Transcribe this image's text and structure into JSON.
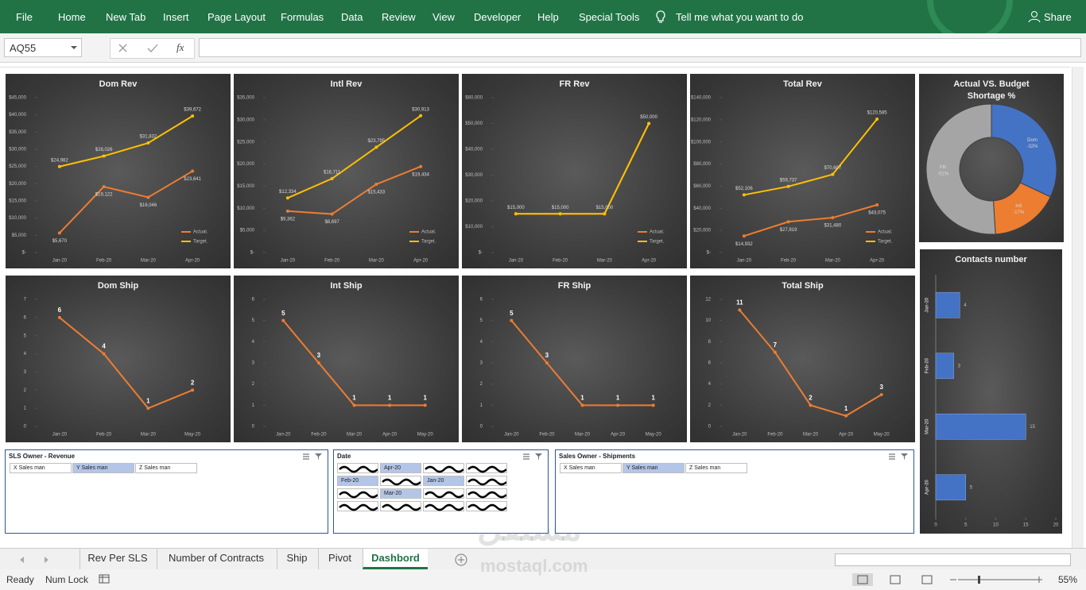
{
  "ribbon": {
    "tabs": [
      "File",
      "Home",
      "New Tab",
      "Insert",
      "Page Layout",
      "Formulas",
      "Data",
      "Review",
      "View",
      "Developer",
      "Help",
      "Special Tools"
    ],
    "tell_me": "Tell me what you want to do",
    "share": "Share"
  },
  "formula_bar": {
    "name_box": "AQ55",
    "fx": "fx"
  },
  "chart_data": [
    {
      "type": "line",
      "title": "Dom Rev",
      "categories": [
        "Jan-20",
        "Feb-20",
        "Mar-20",
        "Apr-20"
      ],
      "series": [
        {
          "name": "Actual.",
          "color": "#ed7d31",
          "values": [
            5670,
            19122,
            16046,
            23641
          ],
          "value_labels": [
            "$5,670",
            "$19,122",
            "$16,046",
            "$23,641"
          ]
        },
        {
          "name": "Target.",
          "color": "#ffc000",
          "values": [
            24982,
            28026,
            31832,
            39672
          ],
          "value_labels": [
            "$24,982",
            "$28,026",
            "$31,832",
            "$39,672"
          ]
        }
      ],
      "ylim": [
        0,
        45000
      ],
      "yticks": [
        {
          "value": 0,
          "label": "$-"
        },
        {
          "value": 5000,
          "label": "$5,000"
        },
        {
          "value": 10000,
          "label": "$10,000"
        },
        {
          "value": 15000,
          "label": "$15,000"
        },
        {
          "value": 20000,
          "label": "$20,000"
        },
        {
          "value": 25000,
          "label": "$25,000"
        },
        {
          "value": 30000,
          "label": "$30,000"
        },
        {
          "value": 35000,
          "label": "$35,000"
        },
        {
          "value": 40000,
          "label": "$40,000"
        },
        {
          "value": 45000,
          "label": "$45,000"
        }
      ],
      "legend": "lower right"
    },
    {
      "type": "line",
      "title": "Intl Rev",
      "categories": [
        "Jan-20",
        "Feb-20",
        "Mar-20",
        "Apr-20"
      ],
      "series": [
        {
          "name": "Actual.",
          "color": "#ed7d31",
          "values": [
            9362,
            8697,
            15433,
            19434
          ],
          "value_labels": [
            "$9,362",
            "$8,697",
            "$15,433",
            "$19,434"
          ]
        },
        {
          "name": "Target.",
          "color": "#ffc000",
          "values": [
            12334,
            16711,
            23795,
            30913
          ],
          "value_labels": [
            "$12,334",
            "$16,711",
            "$23,795",
            "$30,913"
          ]
        }
      ],
      "ylim": [
        0,
        35000
      ],
      "yticks": [
        {
          "value": 0,
          "label": "$-"
        },
        {
          "value": 5000,
          "label": "$5,000"
        },
        {
          "value": 10000,
          "label": "$10,000"
        },
        {
          "value": 15000,
          "label": "$15,000"
        },
        {
          "value": 20000,
          "label": "$20,000"
        },
        {
          "value": 25000,
          "label": "$25,000"
        },
        {
          "value": 30000,
          "label": "$30,000"
        },
        {
          "value": 35000,
          "label": "$35,000"
        }
      ],
      "legend": "lower right"
    },
    {
      "type": "line",
      "title": "FR Rev",
      "categories": [
        "Jan-20",
        "Feb-20",
        "Mar-20",
        "Apr-20"
      ],
      "series": [
        {
          "name": "Actual.",
          "color": "#ed7d31",
          "values": [
            15000,
            15000,
            15000,
            50000
          ]
        },
        {
          "name": "Target.",
          "color": "#ffc000",
          "values": [
            15000,
            15000,
            15000,
            50000
          ],
          "value_labels": [
            "$15,000",
            "$15,000",
            "$15,000",
            "$50,000"
          ]
        }
      ],
      "ylim": [
        0,
        60000
      ],
      "yticks": [
        {
          "value": 0,
          "label": "$-"
        },
        {
          "value": 10000,
          "label": "$10,000"
        },
        {
          "value": 20000,
          "label": "$20,000"
        },
        {
          "value": 30000,
          "label": "$30,000"
        },
        {
          "value": 40000,
          "label": "$40,000"
        },
        {
          "value": 50000,
          "label": "$50,000"
        },
        {
          "value": 60000,
          "label": "$60,000"
        }
      ],
      "legend": "lower right"
    },
    {
      "type": "line",
      "title": "Total Rev",
      "categories": [
        "Jan-20",
        "Feb-20",
        "Mar-20",
        "Apr-20"
      ],
      "series": [
        {
          "name": "Actual.",
          "color": "#ed7d31",
          "values": [
            14932,
            27819,
            31480,
            43075
          ],
          "value_labels": [
            "$14,932",
            "$27,819",
            "$31,480",
            "$43,075"
          ]
        },
        {
          "name": "Target.",
          "color": "#ffc000",
          "values": [
            52106,
            59737,
            70607,
            120585
          ],
          "value_labels": [
            "$52,106",
            "$59,737",
            "$70,607",
            "$120,585"
          ]
        }
      ],
      "ylim": [
        0,
        140000
      ],
      "yticks": [
        {
          "value": 0,
          "label": "$-"
        },
        {
          "value": 20000,
          "label": "$20,000"
        },
        {
          "value": 40000,
          "label": "$40,000"
        },
        {
          "value": 60000,
          "label": "$60,000"
        },
        {
          "value": 80000,
          "label": "$80,000"
        },
        {
          "value": 100000,
          "label": "$100,000"
        },
        {
          "value": 120000,
          "label": "$120,000"
        },
        {
          "value": 140000,
          "label": "$140,000"
        }
      ],
      "legend": "lower right"
    },
    {
      "type": "line",
      "title": "Dom Ship",
      "categories": [
        "Jan-20",
        "Feb-20",
        "Mar-20",
        "May-20"
      ],
      "values": [
        6,
        4,
        1,
        2
      ],
      "color": "#ed7d31",
      "data_labels": true,
      "ylim": [
        0,
        7
      ],
      "yticks": [
        0,
        1,
        2,
        3,
        4,
        5,
        6,
        7
      ]
    },
    {
      "type": "line",
      "title": "Int Ship",
      "categories": [
        "Jan-20",
        "Feb-20",
        "Mar-20",
        "Apr-20",
        "May-20"
      ],
      "values": [
        5,
        3,
        1,
        1,
        1
      ],
      "color": "#ed7d31",
      "data_labels": true,
      "ylim": [
        0,
        6
      ],
      "yticks": [
        0,
        1,
        2,
        3,
        4,
        5,
        6
      ]
    },
    {
      "type": "line",
      "title": "FR Ship",
      "categories": [
        "Jan-20",
        "Feb-20",
        "Mar-20",
        "Apr-20",
        "May-20"
      ],
      "values": [
        5,
        3,
        1,
        1,
        1
      ],
      "color": "#ed7d31",
      "data_labels": true,
      "ylim": [
        0,
        6
      ],
      "yticks": [
        0,
        1,
        2,
        3,
        4,
        5,
        6
      ]
    },
    {
      "type": "line",
      "title": "Total Ship",
      "categories": [
        "Jan-20",
        "Feb-20",
        "Mar-20",
        "Apr-20",
        "May-20"
      ],
      "values": [
        11,
        7,
        2,
        1,
        3
      ],
      "color": "#ed7d31",
      "data_labels": true,
      "ylim": [
        0,
        12
      ],
      "yticks": [
        0,
        2,
        4,
        6,
        8,
        10,
        12
      ]
    },
    {
      "type": "pie",
      "donut": true,
      "title": "Actual VS. Budget Shortage %",
      "categories": [
        "Dom",
        "Intl",
        "FR"
      ],
      "values": [
        -32,
        -17,
        -51
      ],
      "value_labels": [
        "-32%",
        "-17%",
        "-51%"
      ],
      "colors": [
        "#4472c4",
        "#ed7d31",
        "#a5a5a5"
      ]
    },
    {
      "type": "bar",
      "orientation": "horizontal",
      "title": "Contacts number",
      "categories": [
        "Jan-20",
        "Feb-20",
        "Mar-20",
        "Apr-20"
      ],
      "values": [
        4,
        3,
        15,
        5
      ],
      "color": "#4472c4",
      "data_labels": true,
      "xlim": [
        0,
        20
      ],
      "xticks": [
        0,
        5,
        10,
        15,
        20
      ]
    }
  ],
  "slicers": [
    {
      "title": "SLS Owner - Revenue",
      "items": [
        "X Sales man",
        "Y Sales man",
        "Z Sales man"
      ],
      "selected": [
        1
      ]
    },
    {
      "title": "Date",
      "items": [
        "Apr-20",
        "Feb-20",
        "Jan-20",
        "Mar-20"
      ],
      "selected": [
        0,
        1,
        2,
        3
      ]
    },
    {
      "title": "Sales Owner - Shipments",
      "items": [
        "X Sales man",
        "Y Sales man",
        "Z Sales man"
      ],
      "selected": [
        1
      ]
    }
  ],
  "sheet_tabs": {
    "tabs": [
      "Rev Per SLS",
      "Number of Contracts",
      "Ship",
      "Pivot",
      "Dashbord"
    ],
    "active": 4
  },
  "status_bar": {
    "ready": "Ready",
    "num_lock": "Num Lock",
    "zoom": "55%"
  },
  "watermark": {
    "arabic": "مستقل",
    "latin": "mostaql.com"
  }
}
